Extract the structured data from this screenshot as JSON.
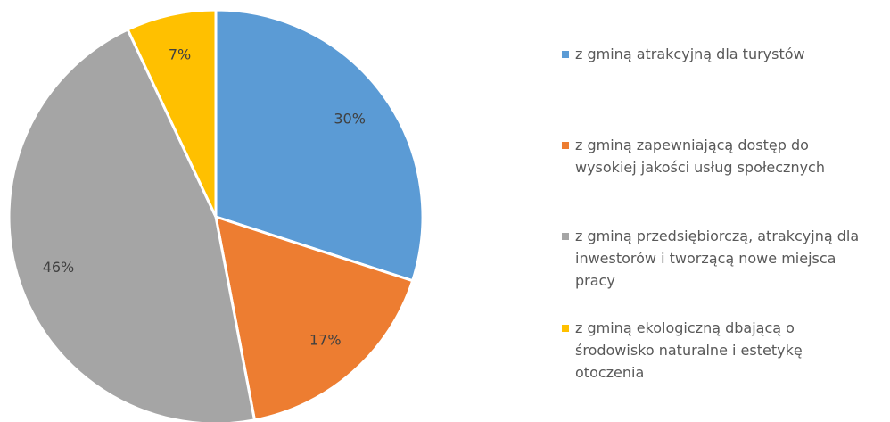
{
  "chart_data": {
    "type": "pie",
    "categories": [
      "z gminą atrakcyjną dla turystów",
      "z gminą zapewniającą dostęp do wysokiej jakości usług społecznych",
      "z gminą przedsiębiorczą, atrakcyjną dla inwestorów i tworzącą nowe miejsca pracy",
      "z gminą ekologiczną dbającą o środowisko naturalne i estetykę otoczenia"
    ],
    "values": [
      30,
      17,
      46,
      7
    ],
    "value_labels": [
      "30%",
      "17%",
      "46%",
      "7%"
    ],
    "colors": [
      "#5b9bd5",
      "#ed7d31",
      "#a5a5a5",
      "#ffc000"
    ],
    "legend": "right"
  }
}
